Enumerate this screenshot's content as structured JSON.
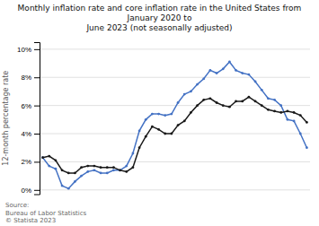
{
  "chart_data": {
    "type": "line",
    "title": "Monthly inflation rate and core inflation rate in the United States from January 2020 to\nJune 2023 (not seasonally adjusted)",
    "ylabel": "12-month percentage rate",
    "annotations": [
      "Source:\nBureau of Labor Statistics\n© Statista 2023"
    ],
    "categories": [
      null,
      null,
      null,
      null,
      null,
      null,
      null,
      null,
      null,
      null,
      null,
      null,
      null,
      null,
      null,
      null,
      null,
      null,
      null,
      null,
      null,
      null,
      null,
      null,
      null,
      null,
      null,
      null,
      null,
      null,
      null,
      null,
      null,
      null,
      null,
      null,
      null,
      null,
      null,
      null,
      null,
      null
    ],
    "series": [
      {
        "color": "#4472C4",
        "marker": "circle",
        "line_style": "solid",
        "values": [
          2.3,
          1.7,
          1.5,
          0.3,
          0.1,
          0.6,
          1.0,
          1.3,
          1.4,
          1.2,
          1.2,
          1.4,
          1.4,
          1.7,
          2.6,
          4.2,
          5.0,
          5.4,
          5.4,
          5.3,
          5.4,
          6.2,
          6.8,
          7.0,
          7.5,
          7.9,
          8.5,
          8.3,
          8.6,
          9.1,
          8.5,
          8.3,
          8.2,
          7.7,
          7.1,
          6.5,
          6.4,
          6.0,
          5.0,
          4.9,
          4.0,
          3.0
        ]
      },
      {
        "color": "#1a1a1a",
        "marker": "circle",
        "line_style": "solid",
        "values": [
          2.3,
          2.4,
          2.1,
          1.4,
          1.2,
          1.2,
          1.6,
          1.7,
          1.7,
          1.6,
          1.6,
          1.6,
          1.4,
          1.3,
          1.6,
          3.0,
          3.8,
          4.5,
          4.3,
          4.0,
          4.0,
          4.6,
          4.9,
          5.5,
          6.0,
          6.4,
          6.5,
          6.2,
          6.0,
          5.9,
          6.3,
          6.3,
          6.6,
          6.3,
          6.0,
          5.7,
          5.6,
          5.5,
          5.6,
          5.5,
          5.3,
          4.8
        ]
      }
    ],
    "ylim": [
      -0.3,
      10.5
    ],
    "yticks": [
      {
        "value": 0,
        "label": "0%"
      },
      {
        "value": 2,
        "label": "2%"
      },
      {
        "value": 4,
        "label": "4%"
      },
      {
        "value": 6,
        "label": "6%"
      },
      {
        "value": 8,
        "label": "8%"
      },
      {
        "value": 10,
        "label": "10%"
      }
    ],
    "grid": true,
    "tick_labels": "y"
  }
}
